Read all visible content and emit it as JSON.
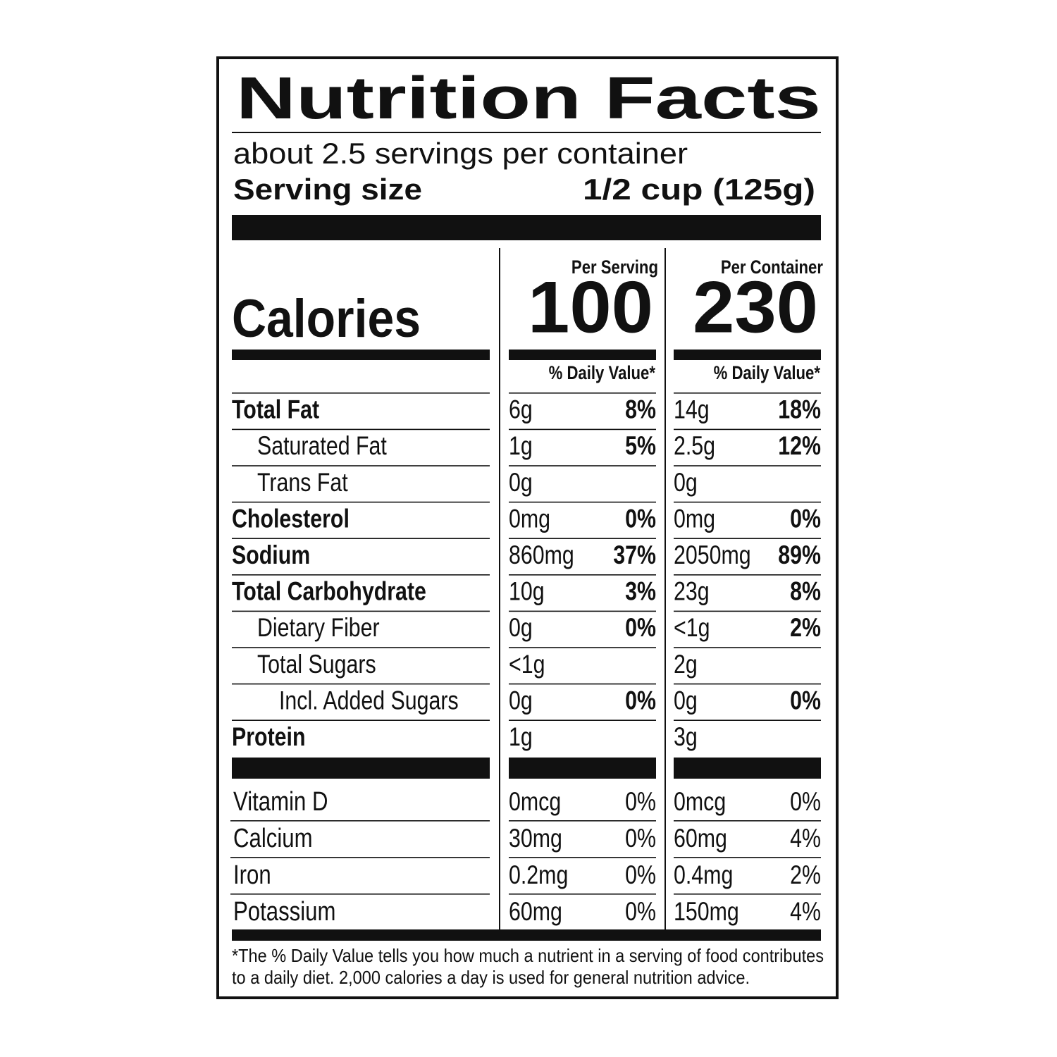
{
  "title": "Nutrition Facts",
  "servings": "about 2.5 servings per container",
  "serving_size": {
    "label": "Serving size",
    "value": "1/2 cup (125g)"
  },
  "calories_label": "Calories",
  "columns": [
    {
      "heading": "Per Serving",
      "calories": "100",
      "dv_heading": "% Daily Value*"
    },
    {
      "heading": "Per Container",
      "calories": "230",
      "dv_heading": "% Daily Value*"
    }
  ],
  "nutrients": [
    {
      "name": "Total Fat",
      "bold": true,
      "indent": 0,
      "values": [
        {
          "amount": "6g",
          "dv": "8%"
        },
        {
          "amount": "14g",
          "dv": "18%"
        }
      ]
    },
    {
      "name": "Saturated Fat",
      "bold": false,
      "indent": 1,
      "values": [
        {
          "amount": "1g",
          "dv": "5%"
        },
        {
          "amount": "2.5g",
          "dv": "12%"
        }
      ]
    },
    {
      "name": "Trans Fat",
      "bold": false,
      "indent": 1,
      "values": [
        {
          "amount": "0g"
        },
        {
          "amount": "0g"
        }
      ]
    },
    {
      "name": "Cholesterol",
      "bold": true,
      "indent": 0,
      "values": [
        {
          "amount": "0mg",
          "dv": "0%"
        },
        {
          "amount": "0mg",
          "dv": "0%"
        }
      ]
    },
    {
      "name": "Sodium",
      "bold": true,
      "indent": 0,
      "values": [
        {
          "amount": "860mg",
          "dv": "37%"
        },
        {
          "amount": "2050mg",
          "dv": "89%"
        }
      ]
    },
    {
      "name": "Total Carbohydrate",
      "bold": true,
      "indent": 0,
      "values": [
        {
          "amount": "10g",
          "dv": "3%"
        },
        {
          "amount": "23g",
          "dv": "8%"
        }
      ]
    },
    {
      "name": "Dietary Fiber",
      "bold": false,
      "indent": 1,
      "values": [
        {
          "amount": "0g",
          "dv": "0%"
        },
        {
          "amount": "<1g",
          "dv": "2%"
        }
      ]
    },
    {
      "name": "Total Sugars",
      "bold": false,
      "indent": 1,
      "values": [
        {
          "amount": "<1g"
        },
        {
          "amount": "2g"
        }
      ]
    },
    {
      "name": "Incl. Added Sugars",
      "bold": false,
      "indent": 2,
      "values": [
        {
          "amount": "0g",
          "dv": "0%"
        },
        {
          "amount": "0g",
          "dv": "0%"
        }
      ]
    },
    {
      "name": "Protein",
      "bold": true,
      "indent": 0,
      "values": [
        {
          "amount": "1g"
        },
        {
          "amount": "3g"
        }
      ]
    }
  ],
  "vitamins": [
    {
      "name": "Vitamin D",
      "values": [
        {
          "amount": "0mcg",
          "dv": "0%"
        },
        {
          "amount": "0mcg",
          "dv": "0%"
        }
      ]
    },
    {
      "name": "Calcium",
      "values": [
        {
          "amount": "30mg",
          "dv": "0%"
        },
        {
          "amount": "60mg",
          "dv": "4%"
        }
      ]
    },
    {
      "name": "Iron",
      "values": [
        {
          "amount": "0.2mg",
          "dv": "0%"
        },
        {
          "amount": "0.4mg",
          "dv": "2%"
        }
      ]
    },
    {
      "name": "Potassium",
      "values": [
        {
          "amount": "60mg",
          "dv": "0%"
        },
        {
          "amount": "150mg",
          "dv": "4%"
        }
      ]
    }
  ],
  "footnote": [
    "*The % Daily Value tells you how much a nutrient in a serving of food contributes",
    "to a daily diet. 2,000 calories a day is used for general nutrition advice."
  ]
}
